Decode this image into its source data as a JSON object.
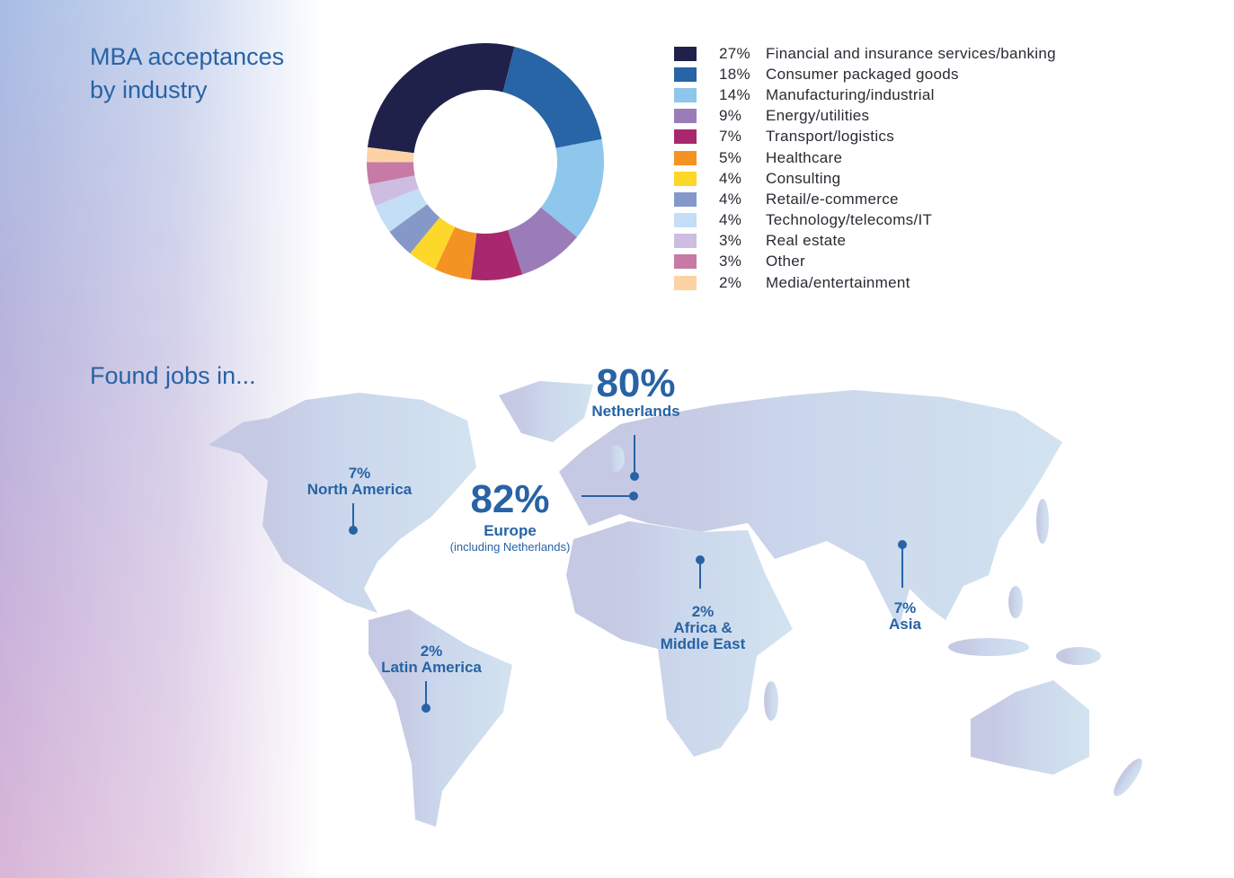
{
  "titles": {
    "industry": "MBA acceptances by industry",
    "industry_l1": "MBA acceptances",
    "industry_l2": "by industry",
    "jobs": "Found jobs in..."
  },
  "chart_data": [
    {
      "type": "pie",
      "variant": "donut",
      "title": "MBA acceptances by industry",
      "legend_placement": "right",
      "slices": [
        {
          "label": "Financial and insurance services/banking",
          "pct_label": "27%",
          "value": 27,
          "color": "#20214a"
        },
        {
          "label": "Consumer packaged goods",
          "pct_label": "18%",
          "value": 18,
          "color": "#2765a6"
        },
        {
          "label": "Manufacturing/industrial",
          "pct_label": "14%",
          "value": 14,
          "color": "#8ec6ec"
        },
        {
          "label": "Energy/utilities",
          "pct_label": "9%",
          "value": 9,
          "color": "#9a7db8"
        },
        {
          "label": "Transport/logistics",
          "pct_label": "7%",
          "value": 7,
          "color": "#a9286d"
        },
        {
          "label": "Healthcare",
          "pct_label": "5%",
          "value": 5,
          "color": "#f39324"
        },
        {
          "label": "Consulting",
          "pct_label": "4%",
          "value": 4,
          "color": "#fdd72a"
        },
        {
          "label": "Retail/e-commerce",
          "pct_label": "4%",
          "value": 4,
          "color": "#8599c9"
        },
        {
          "label": "Technology/telecoms/IT",
          "pct_label": "4%",
          "value": 4,
          "color": "#c3def5"
        },
        {
          "label": "Real estate",
          "pct_label": "3%",
          "value": 3,
          "color": "#cdbde0"
        },
        {
          "label": "Other",
          "pct_label": "3%",
          "value": 3,
          "color": "#c77aa5"
        },
        {
          "label": "Media/entertainment",
          "pct_label": "2%",
          "value": 2,
          "color": "#fdd3a4"
        }
      ]
    },
    {
      "type": "map",
      "title": "Found jobs in...",
      "regions": [
        {
          "name": "Netherlands",
          "pct": "80%",
          "value": 80
        },
        {
          "name": "Europe",
          "pct": "82%",
          "value": 82,
          "note": "(including Netherlands)"
        },
        {
          "name": "North America",
          "pct": "7%",
          "value": 7
        },
        {
          "name": "Latin America",
          "pct": "2%",
          "value": 2
        },
        {
          "name": "Africa & Middle East",
          "pct": "2%",
          "value": 2,
          "line1": "Africa &",
          "line2": "Middle East"
        },
        {
          "name": "Asia",
          "pct": "7%",
          "value": 7
        }
      ]
    }
  ],
  "colors": {
    "accent": "#2763a5",
    "land_left": "#c6c9e3",
    "land_right": "#cfe1ef"
  }
}
